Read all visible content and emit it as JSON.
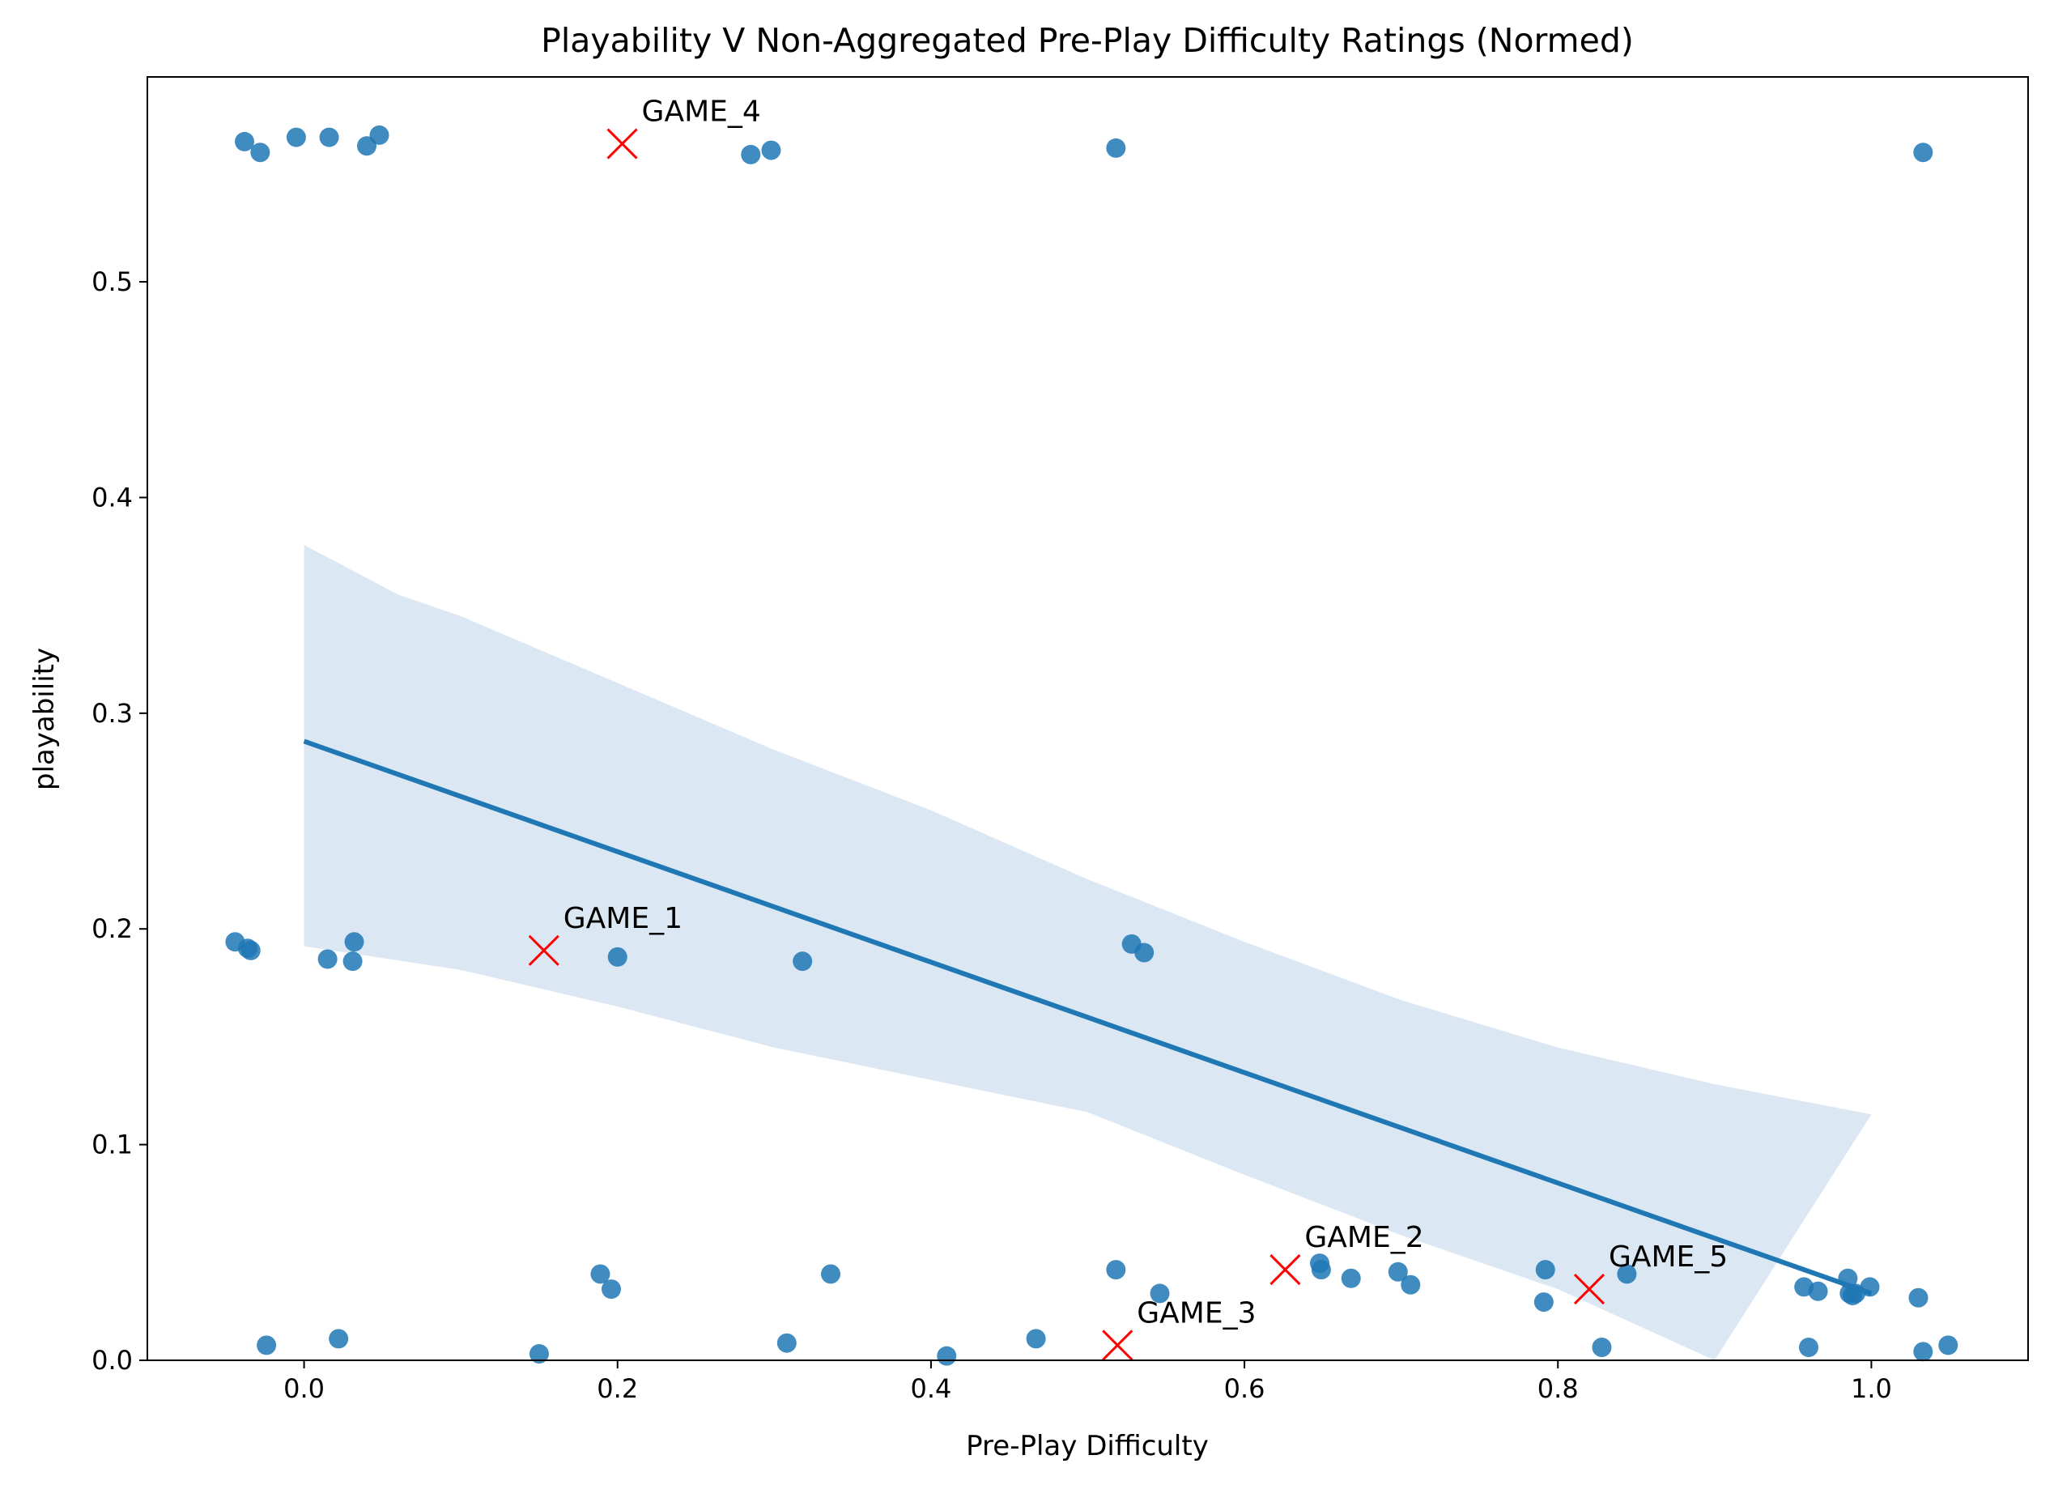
{
  "chart_data": {
    "type": "scatter",
    "title": "Playability V Non-Aggregated Pre-Play Difficulty Ratings (Normed)",
    "xlabel": "Pre-Play Difficulty",
    "ylabel": "playability",
    "xlim": [
      -0.1,
      1.1
    ],
    "ylim": [
      0.0,
      0.595
    ],
    "xticks": [
      0.0,
      0.2,
      0.4,
      0.6,
      0.8,
      1.0
    ],
    "xtick_labels": [
      "0.0",
      "0.2",
      "0.4",
      "0.6",
      "0.8",
      "1.0"
    ],
    "yticks": [
      0.0,
      0.1,
      0.2,
      0.3,
      0.4,
      0.5
    ],
    "ytick_labels": [
      "0.0",
      "0.1",
      "0.2",
      "0.3",
      "0.4",
      "0.5"
    ],
    "grid": false,
    "colors": {
      "points": "#1f77b4",
      "line": "#1f77b4",
      "band": "#dbe7f3",
      "markers": "#ff0000"
    },
    "points": [
      {
        "x": -0.038,
        "y": 0.565
      },
      {
        "x": -0.028,
        "y": 0.56
      },
      {
        "x": -0.005,
        "y": 0.567
      },
      {
        "x": 0.016,
        "y": 0.567
      },
      {
        "x": 0.04,
        "y": 0.563
      },
      {
        "x": 0.048,
        "y": 0.568
      },
      {
        "x": 0.285,
        "y": 0.559
      },
      {
        "x": 0.298,
        "y": 0.561
      },
      {
        "x": 0.518,
        "y": 0.562
      },
      {
        "x": 1.033,
        "y": 0.56
      },
      {
        "x": -0.044,
        "y": 0.194
      },
      {
        "x": -0.036,
        "y": 0.191
      },
      {
        "x": -0.034,
        "y": 0.19
      },
      {
        "x": 0.015,
        "y": 0.186
      },
      {
        "x": 0.031,
        "y": 0.185
      },
      {
        "x": 0.032,
        "y": 0.194
      },
      {
        "x": 0.2,
        "y": 0.187
      },
      {
        "x": 0.318,
        "y": 0.185
      },
      {
        "x": 0.528,
        "y": 0.193
      },
      {
        "x": 0.536,
        "y": 0.189
      },
      {
        "x": -0.024,
        "y": 0.007
      },
      {
        "x": 0.022,
        "y": 0.01
      },
      {
        "x": 0.15,
        "y": 0.003
      },
      {
        "x": 0.189,
        "y": 0.04
      },
      {
        "x": 0.196,
        "y": 0.033
      },
      {
        "x": 0.308,
        "y": 0.008
      },
      {
        "x": 0.336,
        "y": 0.04
      },
      {
        "x": 0.41,
        "y": 0.002
      },
      {
        "x": 0.467,
        "y": 0.01
      },
      {
        "x": 0.518,
        "y": 0.042
      },
      {
        "x": 0.546,
        "y": 0.031
      },
      {
        "x": 0.648,
        "y": 0.045
      },
      {
        "x": 0.649,
        "y": 0.042
      },
      {
        "x": 0.668,
        "y": 0.038
      },
      {
        "x": 0.698,
        "y": 0.041
      },
      {
        "x": 0.706,
        "y": 0.035
      },
      {
        "x": 0.791,
        "y": 0.027
      },
      {
        "x": 0.792,
        "y": 0.042
      },
      {
        "x": 0.828,
        "y": 0.006
      },
      {
        "x": 0.844,
        "y": 0.04
      },
      {
        "x": 0.957,
        "y": 0.034
      },
      {
        "x": 0.96,
        "y": 0.006
      },
      {
        "x": 0.966,
        "y": 0.032
      },
      {
        "x": 0.985,
        "y": 0.038
      },
      {
        "x": 0.986,
        "y": 0.031
      },
      {
        "x": 0.988,
        "y": 0.03
      },
      {
        "x": 0.99,
        "y": 0.031
      },
      {
        "x": 0.999,
        "y": 0.034
      },
      {
        "x": 1.03,
        "y": 0.029
      },
      {
        "x": 1.033,
        "y": 0.004
      },
      {
        "x": 1.049,
        "y": 0.007
      }
    ],
    "regression": {
      "line": [
        {
          "x": 0.0,
          "y": 0.287
        },
        {
          "x": 1.0,
          "y": 0.031
        }
      ],
      "ci_upper": [
        {
          "x": 0.0,
          "y": 0.378
        },
        {
          "x": 0.06,
          "y": 0.355
        },
        {
          "x": 0.1,
          "y": 0.345
        },
        {
          "x": 0.2,
          "y": 0.314
        },
        {
          "x": 0.3,
          "y": 0.283
        },
        {
          "x": 0.4,
          "y": 0.255
        },
        {
          "x": 0.5,
          "y": 0.223
        },
        {
          "x": 0.6,
          "y": 0.194
        },
        {
          "x": 0.7,
          "y": 0.167
        },
        {
          "x": 0.8,
          "y": 0.145
        },
        {
          "x": 0.9,
          "y": 0.128
        },
        {
          "x": 1.0,
          "y": 0.114
        }
      ],
      "ci_lower": [
        {
          "x": 0.0,
          "y": 0.192
        },
        {
          "x": 0.1,
          "y": 0.181
        },
        {
          "x": 0.2,
          "y": 0.164
        },
        {
          "x": 0.3,
          "y": 0.145
        },
        {
          "x": 0.4,
          "y": 0.13
        },
        {
          "x": 0.5,
          "y": 0.115
        },
        {
          "x": 0.6,
          "y": 0.086
        },
        {
          "x": 0.7,
          "y": 0.058
        },
        {
          "x": 0.8,
          "y": 0.033
        },
        {
          "x": 0.9,
          "y": 0.0
        }
      ]
    },
    "annotations": [
      {
        "label": "GAME_1",
        "x": 0.153,
        "y": 0.19
      },
      {
        "label": "GAME_2",
        "x": 0.626,
        "y": 0.042
      },
      {
        "label": "GAME_3",
        "x": 0.519,
        "y": 0.007
      },
      {
        "label": "GAME_4",
        "x": 0.203,
        "y": 0.564
      },
      {
        "label": "GAME_5",
        "x": 0.82,
        "y": 0.033
      }
    ]
  }
}
